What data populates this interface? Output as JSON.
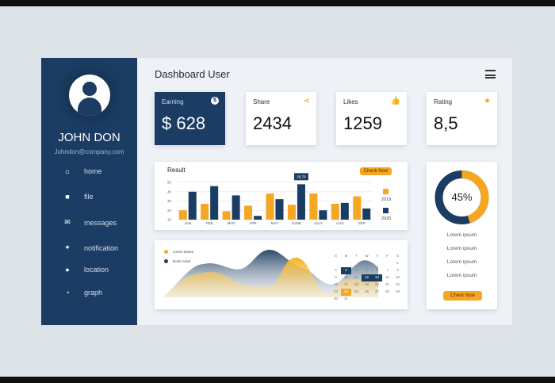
{
  "user": {
    "name": "JOHN DON",
    "email": "Johndon@company.com"
  },
  "sidebar": {
    "items": [
      {
        "label": "home",
        "icon": "home-icon",
        "glyph": "⌂"
      },
      {
        "label": "file",
        "icon": "folder-icon",
        "glyph": "■"
      },
      {
        "label": "messages",
        "icon": "mail-icon",
        "glyph": "✉"
      },
      {
        "label": "notification",
        "icon": "pin-icon",
        "glyph": "✦"
      },
      {
        "label": "location",
        "icon": "location-icon",
        "glyph": "●"
      },
      {
        "label": "graph",
        "icon": "pie-chart-icon",
        "glyph": "◔"
      }
    ]
  },
  "header": {
    "title": "Dashboard User"
  },
  "stats": [
    {
      "label": "Earning",
      "value": "$ 628",
      "icon": "dollar-icon",
      "glyph": "$"
    },
    {
      "label": "Share",
      "value": "2434",
      "icon": "share-icon",
      "glyph": "⋖"
    },
    {
      "label": "Likes",
      "value": "1259",
      "icon": "thumbs-up-icon",
      "glyph": "👍"
    },
    {
      "label": "Rating",
      "value": "8,5",
      "icon": "star-icon",
      "glyph": "★"
    }
  ],
  "colors": {
    "navy": "#1b3d63",
    "orange": "#f5a623"
  },
  "chart_data": [
    {
      "type": "bar",
      "title": "Result",
      "categories": [
        "JAN",
        "FEB",
        "MAR",
        "APR",
        "MAY",
        "JUNE",
        "JULY",
        "AUG",
        "SEP"
      ],
      "yticks": [
        10,
        20,
        30,
        40,
        50
      ],
      "ylim": [
        10,
        50
      ],
      "legend": "right",
      "series": [
        {
          "name": "2019",
          "values": [
            20,
            27,
            19,
            25,
            38,
            26,
            38,
            27,
            35
          ]
        },
        {
          "name": "2020",
          "values": [
            40,
            46,
            36,
            14,
            32,
            48,
            20,
            28,
            22
          ]
        }
      ],
      "annotation": "28,79",
      "button": "Check Now"
    },
    {
      "type": "area",
      "legend": [
        "Lorem Ipsum",
        "Dolor Amet"
      ]
    },
    {
      "type": "pie",
      "values": [
        45,
        55
      ],
      "label": "45%"
    }
  ],
  "calendar": {
    "days": [
      "S",
      "M",
      "T",
      "W",
      "T",
      "F",
      "S"
    ],
    "dates": [
      "",
      "",
      "",
      "",
      "",
      "",
      "1",
      "2",
      "3",
      "4",
      "5",
      "6",
      "7",
      "8",
      "9",
      "10",
      "11",
      "12",
      "13",
      "14",
      "15",
      "16",
      "17",
      "18",
      "19",
      "20",
      "21",
      "22",
      "23",
      "24",
      "25",
      "26",
      "27",
      "28",
      "29",
      "30",
      "31"
    ],
    "navy": [
      "3",
      "12",
      "13"
    ],
    "orange": [
      "24"
    ]
  },
  "donut": {
    "items": [
      "Lorem ipsum",
      "Lorem ipsum",
      "Lorem ipsum",
      "Lorem ipsum"
    ],
    "button": "Check Now"
  }
}
